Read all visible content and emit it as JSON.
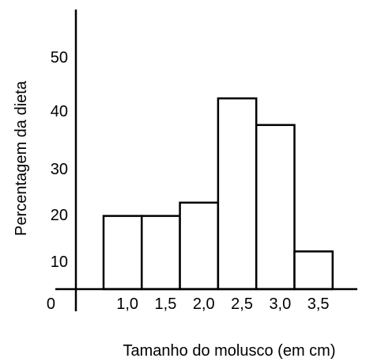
{
  "chart_data": {
    "type": "bar",
    "categories": [
      "1,0",
      "1,5",
      "2,0",
      "2,5",
      "3,0",
      "3,5"
    ],
    "values": [
      16.5,
      16.5,
      19.5,
      43,
      37,
      8.5
    ],
    "xlabel": "Tamanho do molusco (em cm)",
    "ylabel": "Percentagem da dieta",
    "ylim": [
      0,
      60
    ],
    "y_tick_labels": [
      "0",
      "10",
      "20",
      "30",
      "40",
      "50"
    ],
    "y_tick_values": [
      0,
      10,
      20,
      30,
      40,
      50
    ],
    "grid": false,
    "bar_fill": "#ffffff",
    "bar_stroke": "#000000"
  }
}
